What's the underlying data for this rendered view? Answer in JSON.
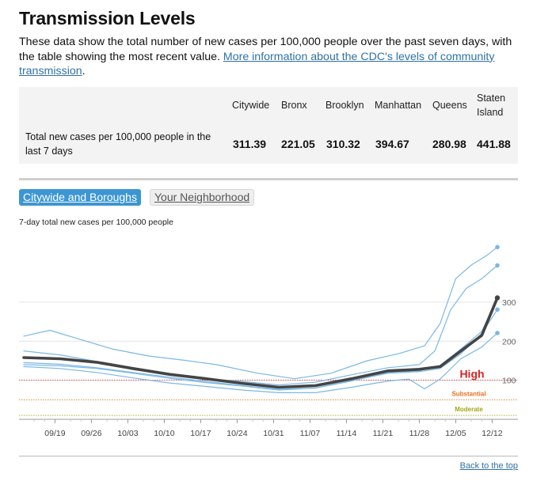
{
  "page": {
    "title": "Transmission Levels",
    "intro_text": "These data show the total number of new cases per 100,000 people over the past seven days, with the table showing the most recent value. ",
    "intro_link": "More information about the CDC's levels of community transmission",
    "intro_end": ".",
    "back_to_top": "Back to the top"
  },
  "table": {
    "row_label": "Total new cases per 100,000 people in the last 7 days",
    "columns": [
      {
        "header": "Citywide",
        "value": "311.39"
      },
      {
        "header": "Bronx",
        "value": "221.05"
      },
      {
        "header": "Brooklyn",
        "value": "310.32"
      },
      {
        "header": "Manhattan",
        "value": "394.67"
      },
      {
        "header": "Queens",
        "value": "280.98"
      },
      {
        "header": "Staten\nIsland",
        "value": "441.88"
      }
    ]
  },
  "tabs": {
    "active": "Citywide and Boroughs",
    "inactive": "Your Neighborhood"
  },
  "colors": {
    "citywide": "#444444",
    "borough": "#7ab8e4",
    "high": "#d6261f",
    "substantial": "#e6701e",
    "moderate": "#a5a515",
    "link": "#2f71a6"
  },
  "chart_data": {
    "type": "line",
    "title": "7-day total new cases per 100,000 people",
    "x_start": "2021-09-13",
    "x_end": "2021-12-13",
    "x_ticks": [
      "09/19",
      "09/26",
      "10/03",
      "10/10",
      "10/17",
      "10/24",
      "10/31",
      "11/07",
      "11/14",
      "11/21",
      "11/28",
      "12/05",
      "12/12"
    ],
    "x_tick_days": [
      6,
      13,
      20,
      27,
      34,
      41,
      48,
      55,
      62,
      69,
      76,
      83,
      90
    ],
    "ylim": [
      0,
      470
    ],
    "y_ticks": [
      100,
      200,
      300
    ],
    "thresholds": [
      {
        "label": "High",
        "value": 100
      },
      {
        "label": "Substantial",
        "value": 50
      },
      {
        "label": "Moderate",
        "value": 10
      }
    ],
    "series": [
      {
        "name": "Citywide",
        "emphasis": true,
        "points": [
          [
            0,
            158
          ],
          [
            7,
            155
          ],
          [
            14,
            146
          ],
          [
            21,
            130
          ],
          [
            28,
            115
          ],
          [
            35,
            104
          ],
          [
            42,
            92
          ],
          [
            49,
            82
          ],
          [
            56,
            86
          ],
          [
            63,
            104
          ],
          [
            70,
            124
          ],
          [
            76,
            128
          ],
          [
            80,
            135
          ],
          [
            84,
            175
          ],
          [
            88,
            215
          ],
          [
            91,
            311
          ]
        ]
      },
      {
        "name": "Staten Island",
        "emphasis": false,
        "points": [
          [
            0,
            213
          ],
          [
            5,
            228
          ],
          [
            10,
            208
          ],
          [
            17,
            180
          ],
          [
            24,
            162
          ],
          [
            31,
            151
          ],
          [
            37,
            140
          ],
          [
            45,
            118
          ],
          [
            52,
            104
          ],
          [
            59,
            118
          ],
          [
            66,
            150
          ],
          [
            72,
            168
          ],
          [
            77,
            188
          ],
          [
            80,
            245
          ],
          [
            83,
            360
          ],
          [
            86,
            395
          ],
          [
            89,
            420
          ],
          [
            91,
            441
          ]
        ]
      },
      {
        "name": "Manhattan",
        "emphasis": false,
        "points": [
          [
            0,
            175
          ],
          [
            7,
            165
          ],
          [
            14,
            148
          ],
          [
            21,
            127
          ],
          [
            28,
            115
          ],
          [
            35,
            104
          ],
          [
            42,
            97
          ],
          [
            49,
            88
          ],
          [
            56,
            95
          ],
          [
            63,
            114
          ],
          [
            70,
            132
          ],
          [
            76,
            140
          ],
          [
            79,
            175
          ],
          [
            82,
            280
          ],
          [
            85,
            335
          ],
          [
            88,
            360
          ],
          [
            91,
            394
          ]
        ]
      },
      {
        "name": "Brooklyn",
        "emphasis": false,
        "points": [
          [
            0,
            145
          ],
          [
            7,
            141
          ],
          [
            14,
            132
          ],
          [
            21,
            120
          ],
          [
            28,
            108
          ],
          [
            35,
            97
          ],
          [
            42,
            86
          ],
          [
            49,
            77
          ],
          [
            56,
            80
          ],
          [
            63,
            98
          ],
          [
            70,
            120
          ],
          [
            76,
            124
          ],
          [
            80,
            138
          ],
          [
            84,
            180
          ],
          [
            88,
            225
          ],
          [
            91,
            310
          ]
        ]
      },
      {
        "name": "Queens",
        "emphasis": false,
        "points": [
          [
            0,
            140
          ],
          [
            7,
            137
          ],
          [
            14,
            130
          ],
          [
            21,
            118
          ],
          [
            28,
            105
          ],
          [
            35,
            94
          ],
          [
            42,
            85
          ],
          [
            49,
            75
          ],
          [
            56,
            80
          ],
          [
            63,
            99
          ],
          [
            70,
            118
          ],
          [
            76,
            122
          ],
          [
            80,
            130
          ],
          [
            84,
            168
          ],
          [
            88,
            220
          ],
          [
            91,
            281
          ]
        ]
      },
      {
        "name": "Bronx",
        "emphasis": false,
        "points": [
          [
            0,
            135
          ],
          [
            7,
            130
          ],
          [
            14,
            120
          ],
          [
            21,
            106
          ],
          [
            28,
            93
          ],
          [
            35,
            84
          ],
          [
            42,
            75
          ],
          [
            49,
            68
          ],
          [
            56,
            68
          ],
          [
            63,
            82
          ],
          [
            70,
            98
          ],
          [
            74,
            103
          ],
          [
            77,
            78
          ],
          [
            80,
            103
          ],
          [
            84,
            155
          ],
          [
            88,
            185
          ],
          [
            91,
            221
          ]
        ]
      }
    ]
  }
}
